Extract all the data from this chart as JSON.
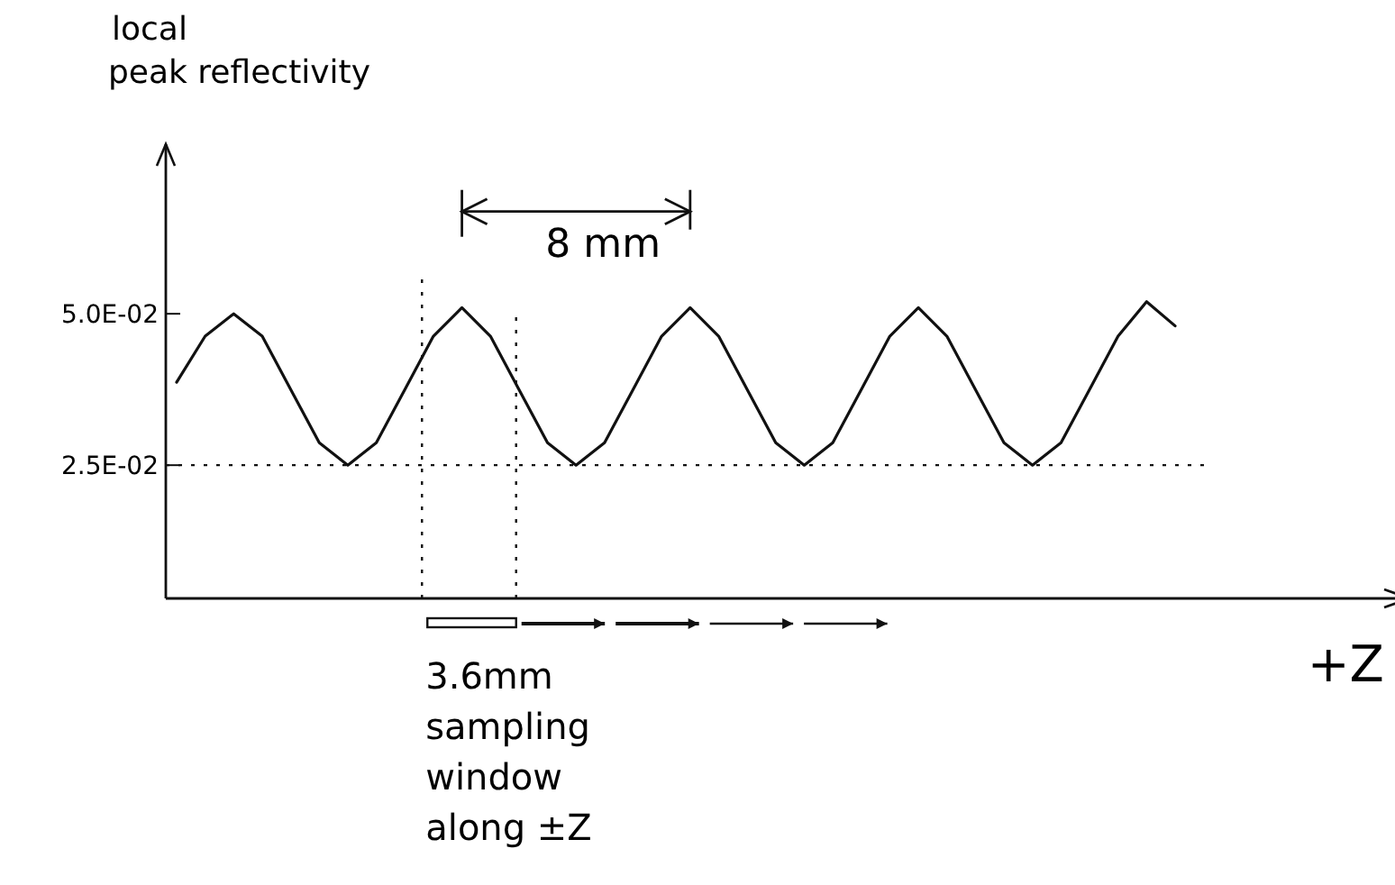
{
  "chart_data": {
    "type": "line",
    "ylabel": "local peak reflectivity",
    "xlabel": "+Z",
    "categories": [
      null,
      null,
      null,
      null,
      null,
      null,
      null,
      null,
      null,
      null,
      null,
      null,
      null,
      null,
      null,
      null,
      null,
      null,
      null,
      null,
      null,
      null,
      null,
      null,
      null,
      null,
      null,
      null,
      null,
      null,
      null,
      null,
      null,
      null,
      null,
      null
    ],
    "series": [
      {
        "color": "#111111",
        "values": [
          0.0387,
          0.0463,
          0.05,
          0.0463,
          0.0375,
          0.0287,
          0.025,
          0.0287,
          0.0375,
          0.0463,
          0.051,
          0.0463,
          0.0375,
          0.0287,
          0.025,
          0.0287,
          0.0375,
          0.0463,
          0.051,
          0.0463,
          0.0375,
          0.0287,
          0.025,
          0.0287,
          0.0375,
          0.0463,
          0.051,
          0.0463,
          0.0375,
          0.0287,
          0.025,
          0.0287,
          0.0375,
          0.0463,
          0.052,
          0.048
        ]
      }
    ],
    "ylim": [
      0.003,
      0.078
    ],
    "yticks": [
      {
        "value": 0.05,
        "label": "5.0E-02"
      },
      {
        "value": 0.025,
        "label": "2.5E-02"
      }
    ],
    "tick_labels": "y",
    "grid": false,
    "marker": "none",
    "line_style": "solid",
    "ref_lines": [
      {
        "axis": "y",
        "value": 0.025,
        "line_style": "dotted"
      }
    ],
    "annotations": [
      "8 mm",
      "3.6mm sampling window along ±Z"
    ]
  }
}
